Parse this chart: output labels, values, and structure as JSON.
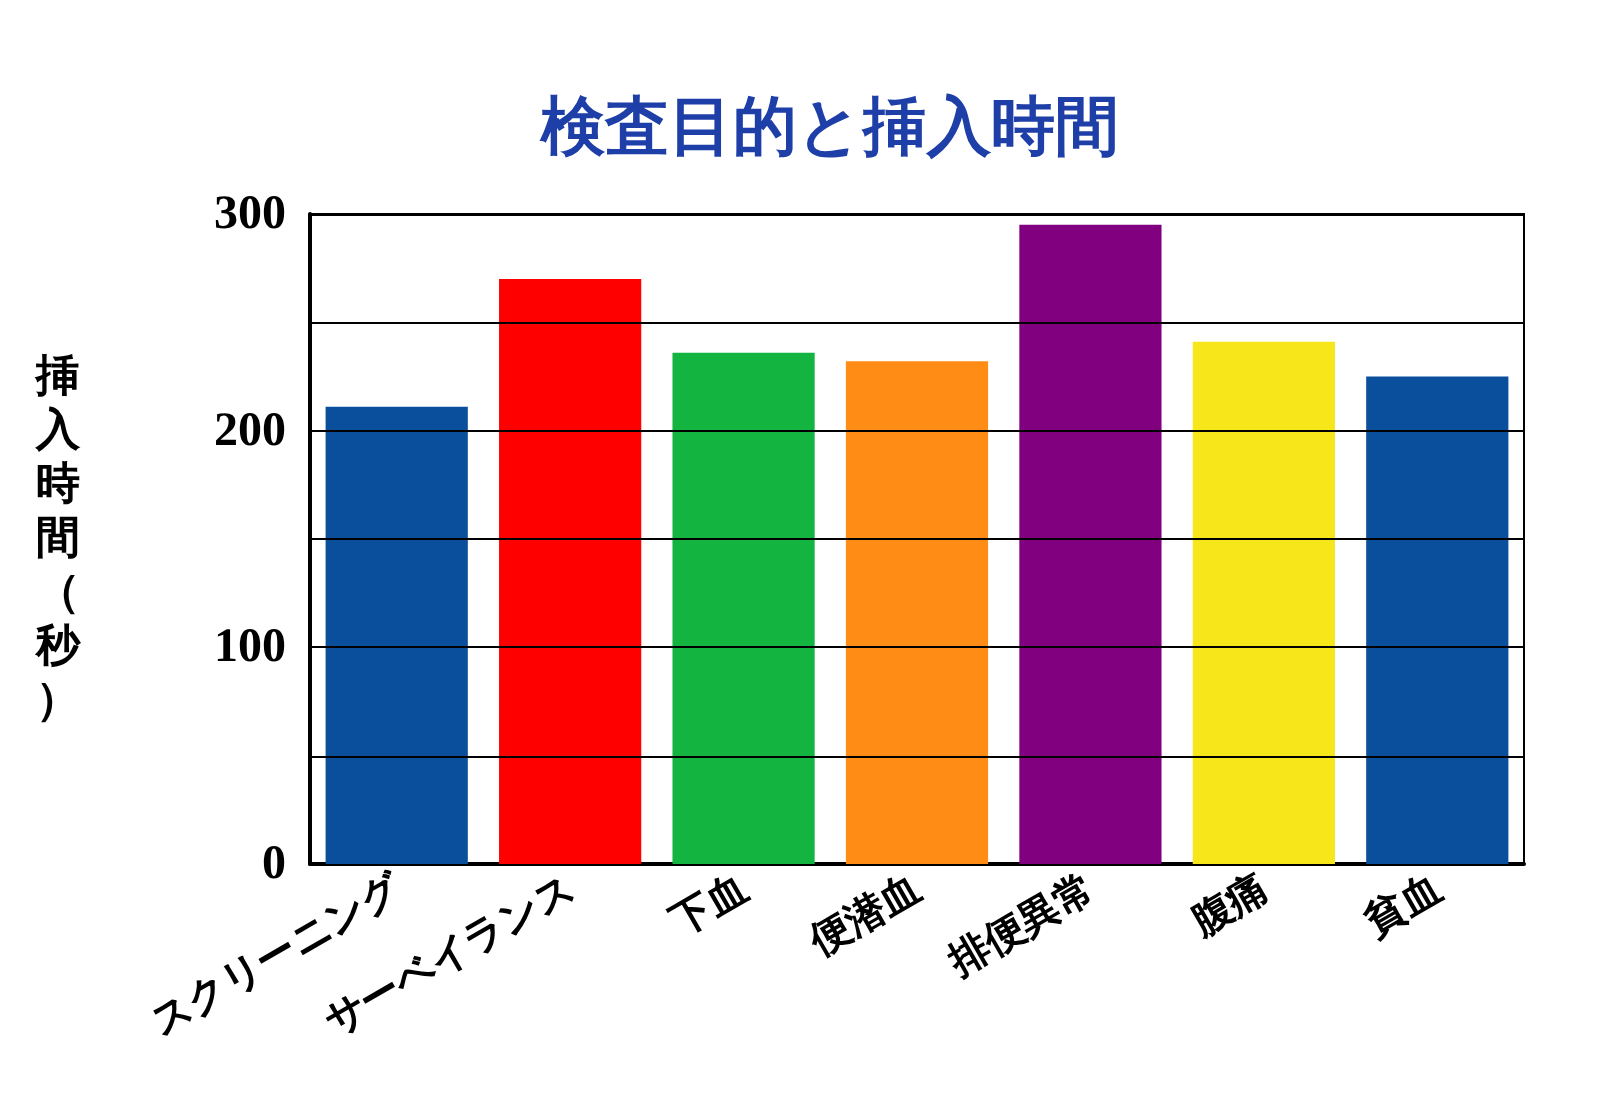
{
  "chart_data": {
    "type": "bar",
    "title": "検査目的と挿入時間",
    "ylabel": "挿入時間（秒）",
    "categories": [
      "スクリーニング",
      "サーベイランス",
      "下血",
      "便潜血",
      "排便異常",
      "腹痛",
      "貧血"
    ],
    "values": [
      211,
      270,
      236,
      232,
      295,
      241,
      225
    ],
    "colors": [
      "#0a4f9b",
      "#ff0000",
      "#13b540",
      "#ff8c14",
      "#800080",
      "#f7e61a",
      "#0a4f9b"
    ],
    "ylim": [
      0,
      300
    ],
    "yticks": [
      0,
      {
        "value": 50,
        "label": null
      },
      100,
      {
        "value": 150,
        "label": null
      },
      200,
      {
        "value": 250,
        "label": null
      },
      300
    ],
    "grid": "y"
  }
}
